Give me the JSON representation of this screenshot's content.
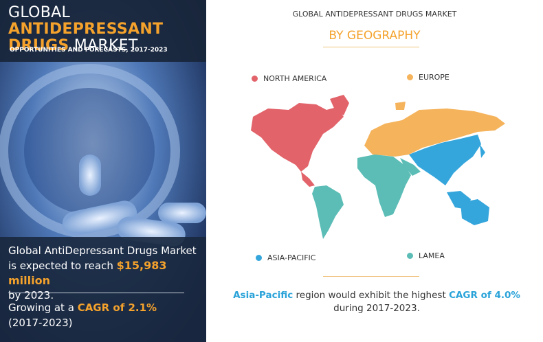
{
  "header": {
    "title_1": "GLOBAL",
    "title_2": "ANTIDEPRESSANT",
    "title_3": "DRUGS",
    "title_4": "MARKET",
    "subtitle": "OPPORTUNITIES AND FORECASTS, 2017-2023"
  },
  "summary": {
    "line_1": "Global AntiDepressant  Drugs Market",
    "line_2": "is expected to reach",
    "highlight": "$15,983 million",
    "line_3": "by 2023."
  },
  "growth": {
    "prefix": "Growing at a",
    "highlight": "CAGR of 2.1%",
    "period": "(2017-2023)"
  },
  "map": {
    "title": "GLOBAL ANTIDEPRESSANT DRUGS MARKET",
    "subtitle": "BY GEOGRAPHY",
    "legend": [
      {
        "name": "NORTH AMERICA",
        "color": "#e2636a"
      },
      {
        "name": "EUROPE",
        "color": "#f5b35c"
      },
      {
        "name": "ASIA-PACIFIC",
        "color": "#35a6dc"
      },
      {
        "name": "LAMEA",
        "color": "#5bbdb6"
      }
    ]
  },
  "footer": {
    "highlight_1": "Asia-Pacific",
    "text_1": "region would exhibit the highest",
    "highlight_2": "CAGR of 4.0%",
    "text_2": "during 2017-2023."
  }
}
